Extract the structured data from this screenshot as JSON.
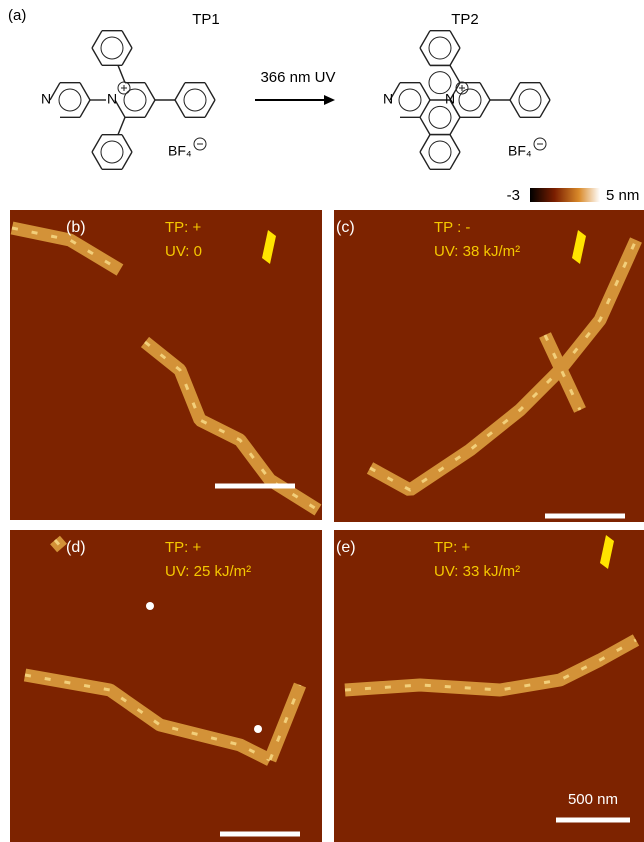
{
  "panel_a": {
    "label": "(a)",
    "arrow_label": "366 nm UV",
    "tp1": {
      "name": "TP1",
      "ring_n": "N",
      "cation_n": "N",
      "counterion": "BF₄"
    },
    "tp2": {
      "name": "TP2",
      "ring_n": "N",
      "cation_n": "N",
      "counterion": "BF₄"
    }
  },
  "colorbar": {
    "min_label": "-3",
    "max_label": "5 nm"
  },
  "panels": [
    {
      "label": "(b)",
      "lines": [
        "TP: +",
        "UV: 0"
      ]
    },
    {
      "label": "(c)",
      "lines": [
        "TP : -",
        "UV: 38 kJ/m²"
      ]
    },
    {
      "label": "(d)",
      "lines": [
        "TP: +",
        "UV: 25 kJ/m²"
      ]
    },
    {
      "label": "(e)",
      "lines": [
        "TP: +",
        "UV: 33 kJ/m²"
      ]
    }
  ],
  "scale_bar_label": "500 nm"
}
